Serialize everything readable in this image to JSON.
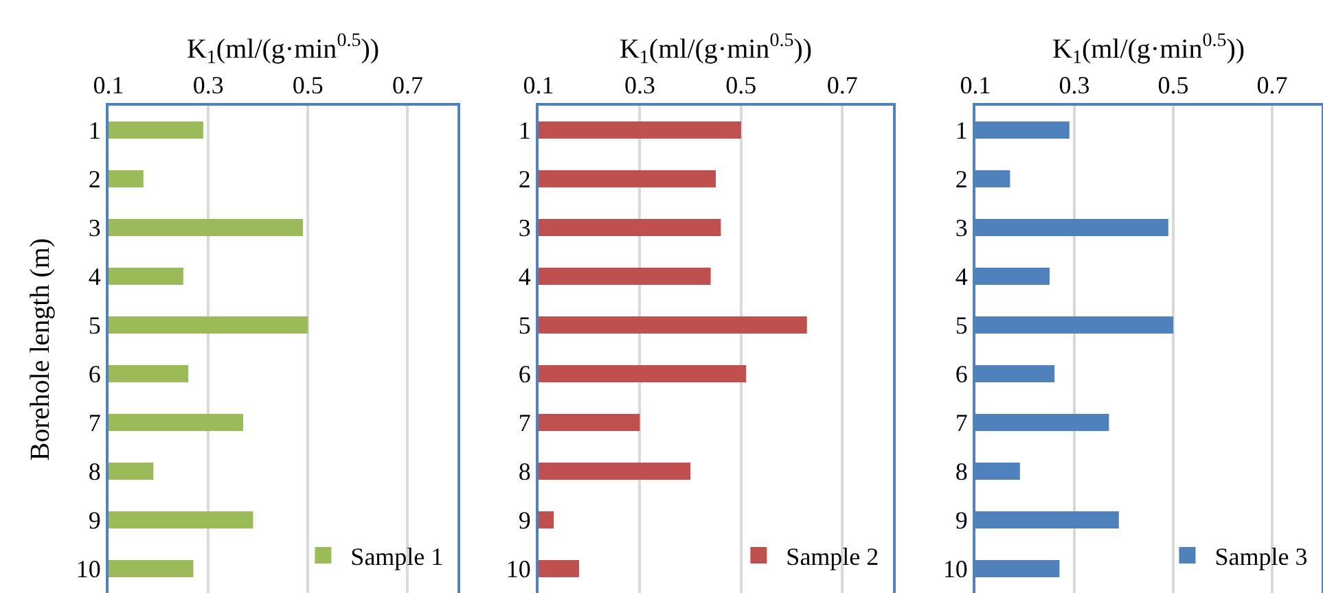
{
  "chart_data": [
    {
      "type": "bar",
      "orientation": "horizontal",
      "xlabel": "K$_{1}$(ml/(g·min$^{0.5}$))",
      "ylabel": "Borehole length (m)",
      "categories": [
        "1",
        "2",
        "3",
        "4",
        "5",
        "6",
        "7",
        "8",
        "9",
        "10"
      ],
      "series": [
        {
          "name": "Sample 1",
          "color": "#9bbb59",
          "values": [
            0.29,
            0.17,
            0.49,
            0.25,
            0.5,
            0.26,
            0.37,
            0.19,
            0.39,
            0.27
          ]
        }
      ],
      "xlim": [
        0.1,
        0.8
      ],
      "xticks": [
        0.1,
        0.3,
        0.5,
        0.7
      ],
      "grid": "x",
      "legend": "bottom right"
    },
    {
      "type": "bar",
      "orientation": "horizontal",
      "xlabel": "K$_{1}$(ml/(g·min$^{0.5}$))",
      "categories": [
        "1",
        "2",
        "3",
        "4",
        "5",
        "6",
        "7",
        "8",
        "9",
        "10"
      ],
      "series": [
        {
          "name": "Sample 2",
          "color": "#c0504d",
          "values": [
            0.5,
            0.45,
            0.46,
            0.44,
            0.63,
            0.51,
            0.3,
            0.4,
            0.13,
            0.18
          ]
        }
      ],
      "xlim": [
        0.1,
        0.8
      ],
      "xticks": [
        0.1,
        0.3,
        0.5,
        0.7
      ],
      "grid": "x",
      "legend": "bottom right"
    },
    {
      "type": "bar",
      "orientation": "horizontal",
      "xlabel": "K$_{1}$(ml/(g·min$^{0.5}$))",
      "categories": [
        "1",
        "2",
        "3",
        "4",
        "5",
        "6",
        "7",
        "8",
        "9",
        "10"
      ],
      "series": [
        {
          "name": "Sample 3",
          "color": "#4f81bd",
          "values": [
            0.29,
            0.17,
            0.49,
            0.25,
            0.5,
            0.26,
            0.37,
            0.19,
            0.39,
            0.27
          ]
        }
      ],
      "xlim": [
        0.1,
        0.8
      ],
      "xticks": [
        0.1,
        0.3,
        0.5,
        0.7
      ],
      "grid": "x",
      "legend": "bottom right"
    }
  ]
}
